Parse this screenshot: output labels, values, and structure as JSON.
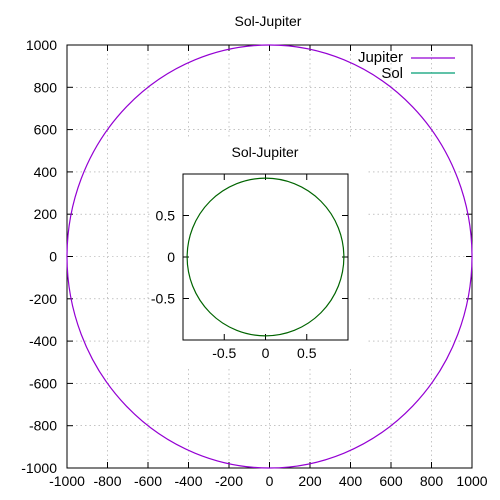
{
  "chart_data": [
    {
      "type": "line",
      "title": "Sol-Jupiter",
      "xlabel": "",
      "ylabel": "",
      "xlim": [
        -1000,
        1000
      ],
      "ylim": [
        -1000,
        1000
      ],
      "xticks": [
        -1000,
        -800,
        -600,
        -400,
        -200,
        0,
        200,
        400,
        600,
        800,
        1000
      ],
      "yticks": [
        -1000,
        -800,
        -600,
        -400,
        -200,
        0,
        200,
        400,
        600,
        800,
        1000
      ],
      "xtick_labels": [
        "-1000",
        "-800",
        "-600",
        "-400",
        "-200",
        "0",
        "200",
        "400",
        "600",
        "800",
        "1000"
      ],
      "ytick_labels": [
        "-1000",
        "-800",
        "-600",
        "-400",
        "-200",
        "0",
        "200",
        "400",
        "600",
        "800",
        "1000"
      ],
      "grid": true,
      "legend_position": "top-right",
      "series": [
        {
          "name": "Jupiter",
          "color": "#9400d3",
          "shape": "circle",
          "center": [
            0,
            0
          ],
          "radius": 1000
        },
        {
          "name": "Sol",
          "color": "#009e73",
          "shape": "circle",
          "center": [
            0,
            0
          ],
          "radius": 0
        }
      ]
    },
    {
      "type": "line",
      "title": "Sol-Jupiter",
      "xlabel": "",
      "ylabel": "",
      "xlim": [
        -1,
        1
      ],
      "ylim": [
        -1,
        1
      ],
      "xticks": [
        -0.5,
        0,
        0.5
      ],
      "yticks": [
        -0.5,
        0,
        0.5
      ],
      "xtick_labels": [
        "-0.5",
        "0",
        "0.5"
      ],
      "ytick_labels": [
        "-0.5",
        "0",
        "0.5"
      ],
      "grid": false,
      "series": [
        {
          "color": "#006400",
          "shape": "circle",
          "center": [
            0,
            0
          ],
          "radius": 0.95
        }
      ]
    }
  ]
}
